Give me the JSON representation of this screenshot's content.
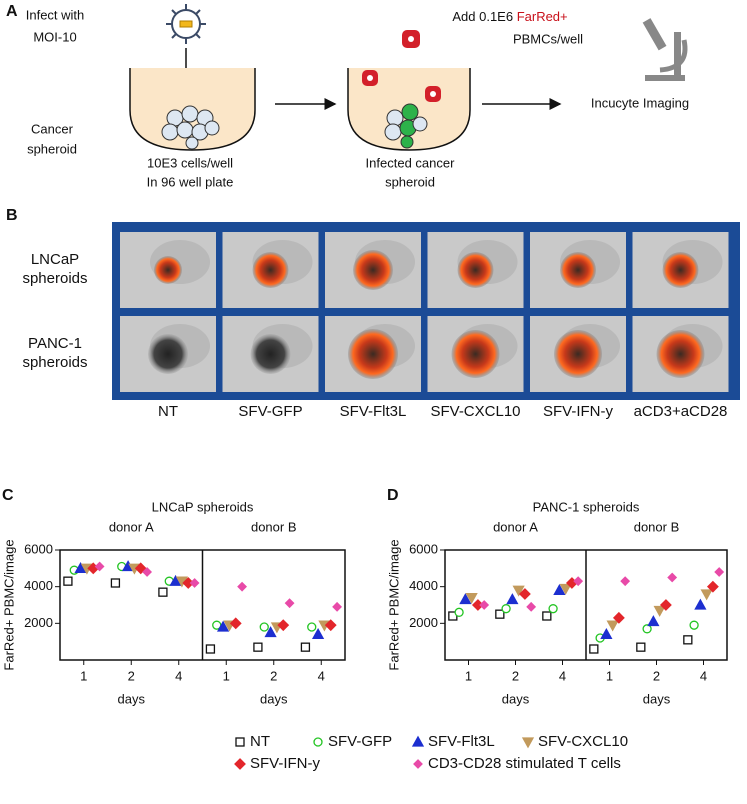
{
  "panel_a": {
    "letter": "A",
    "infect_line1": "Infect with",
    "infect_line2": "MOI-10",
    "spheroid_label_line1": "Cancer",
    "spheroid_label_line2": "spheroid",
    "well1_line1": "10E3 cells/well",
    "well1_line2": "In 96 well plate",
    "add_prefix": "Add 0.1E6 ",
    "add_highlight": "FarRed+",
    "add_line2": "PBMCs/well",
    "well2_line1": "Infected cancer",
    "well2_line2": "spheroid",
    "imaging": "Incucyte Imaging"
  },
  "panel_b": {
    "letter": "B",
    "rows": [
      [
        "LNCaP",
        "spheroids"
      ],
      [
        "PANC-1",
        "spheroids"
      ]
    ],
    "columns": [
      {
        "label": "NT",
        "color": "#111111"
      },
      {
        "label": "SFV-GFP",
        "color": "#1fa84a"
      },
      {
        "label": "SFV-Flt3L",
        "color": "#1c2fd0"
      },
      {
        "label": "SFV-CXCL10",
        "color": "#c29a3c"
      },
      {
        "label": "SFV-IFN-y",
        "color": "#e3262b"
      },
      {
        "label": "aCD3+aCD28",
        "color": "#c21fc2"
      }
    ]
  },
  "chart_data": [
    {
      "type": "scatter",
      "panel": "C",
      "title": "LNCaP spheroids",
      "y_label": "FarRed+ PBMC/image",
      "x_label": "days",
      "groups": [
        "donor A",
        "donor B"
      ],
      "categories": [
        "1",
        "2",
        "4",
        "1",
        "2",
        "4"
      ],
      "ylim": [
        0,
        6000
      ],
      "yticks": [
        2000,
        4000,
        6000
      ],
      "series": [
        {
          "name": "NT",
          "color": "#111111",
          "marker": "square-open",
          "values": [
            4300,
            4200,
            3700,
            600,
            700,
            700
          ]
        },
        {
          "name": "SFV-GFP",
          "color": "#22c422",
          "marker": "circle-open",
          "values": [
            4900,
            5100,
            4300,
            1900,
            1800,
            1800
          ]
        },
        {
          "name": "SFV-Flt3L",
          "color": "#1c2fd0",
          "marker": "triangle-up",
          "values": [
            5000,
            5100,
            4300,
            1800,
            1500,
            1400
          ]
        },
        {
          "name": "SFV-CXCL10",
          "color": "#c29a5c",
          "marker": "triangle-down",
          "values": [
            5000,
            5000,
            4300,
            1900,
            1800,
            1900
          ]
        },
        {
          "name": "SFV-IFN-y",
          "color": "#e3262b",
          "marker": "diamond",
          "values": [
            5000,
            5000,
            4200,
            2000,
            1900,
            1900
          ]
        },
        {
          "name": "CD3-CD28 stimulated T cells",
          "color": "#e84aa8",
          "marker": "diamond-small",
          "values": [
            5100,
            4800,
            4200,
            4000,
            3100,
            2900
          ]
        }
      ]
    },
    {
      "type": "scatter",
      "panel": "D",
      "title": "PANC-1 spheroids",
      "y_label": "FarRed+ PBMC/image",
      "x_label": "days",
      "groups": [
        "donor A",
        "donor B"
      ],
      "categories": [
        "1",
        "2",
        "4",
        "1",
        "2",
        "4"
      ],
      "ylim": [
        0,
        6000
      ],
      "yticks": [
        2000,
        4000,
        6000
      ],
      "series": [
        {
          "color": "#111111",
          "marker": "square-open",
          "values": [
            2400,
            2500,
            2400,
            600,
            700,
            1100
          ]
        },
        {
          "color": "#22c422",
          "marker": "circle-open",
          "values": [
            2600,
            2800,
            2800,
            1200,
            1700,
            1900
          ]
        },
        {
          "color": "#1c2fd0",
          "marker": "triangle-up",
          "values": [
            3300,
            3300,
            3800,
            1400,
            2100,
            3000
          ]
        },
        {
          "color": "#c29a5c",
          "marker": "triangle-down",
          "values": [
            3400,
            3800,
            3900,
            1900,
            2700,
            3600
          ]
        },
        {
          "color": "#e3262b",
          "marker": "diamond",
          "values": [
            3000,
            3600,
            4200,
            2300,
            3000,
            4000
          ]
        },
        {
          "color": "#e84aa8",
          "marker": "diamond-small",
          "values": [
            3000,
            2900,
            4300,
            4300,
            4500,
            4800
          ]
        }
      ]
    }
  ]
}
